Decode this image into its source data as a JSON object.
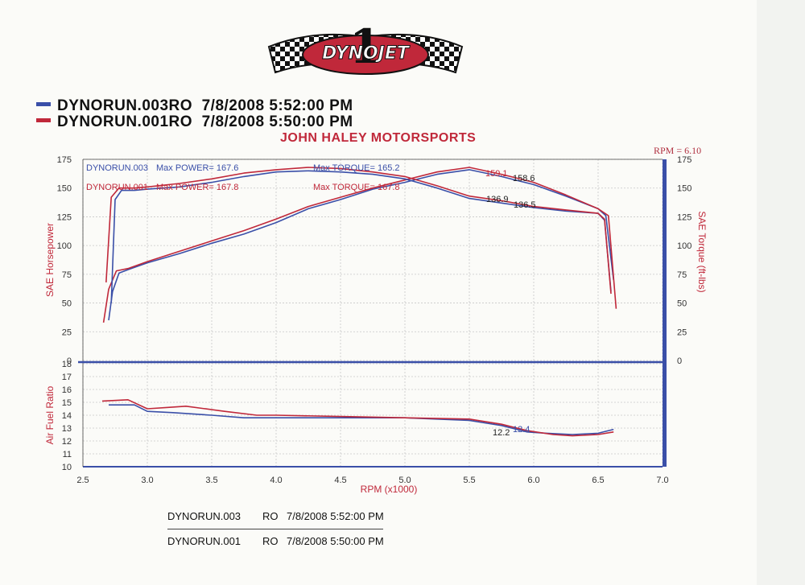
{
  "logo_text": "DYNOJET",
  "logo_number": "1",
  "runs": [
    {
      "name": "DYNORUN.003RO",
      "date": "7/8/2008",
      "time": "5:52:00 PM",
      "color": "#3a4fa8"
    },
    {
      "name": "DYNORUN.001RO",
      "date": "7/8/2008",
      "time": "5:50:00 PM",
      "color": "#c0283a"
    }
  ],
  "shop_name": "JOHN HALEY MOTORSPORTS",
  "rpm_note": "RPM = 6.10",
  "footer": [
    {
      "run": "DYNORUN.003",
      "mode": "RO",
      "datetime": "7/8/2008 5:52:00 PM"
    },
    {
      "run": "DYNORUN.001",
      "mode": "RO",
      "datetime": "7/8/2008 5:50:00 PM"
    }
  ],
  "chart_data": [
    {
      "type": "line",
      "title": "",
      "xlabel": "RPM (x1000)",
      "ylabel": "SAE Horsepower",
      "y2label": "SAE Torque (ft-lbs)",
      "xlim": [
        2.5,
        7.0
      ],
      "ylim": [
        0,
        175
      ],
      "y2lim": [
        0,
        175
      ],
      "x_ticks": [
        "2.5",
        "3.0",
        "3.5",
        "4.0",
        "4.5",
        "5.0",
        "5.5",
        "6.0",
        "6.5",
        "7.0"
      ],
      "y_ticks": [
        "0",
        "25",
        "50",
        "75",
        "100",
        "125",
        "150",
        "175"
      ],
      "grid": true,
      "annotations": [
        {
          "text": "DYNORUN.003",
          "color": "#3a4fa8"
        },
        {
          "text": "Max POWER= 167.6",
          "color": "#3a4fa8"
        },
        {
          "text": "DYNORUN.001",
          "color": "#c0283a"
        },
        {
          "text": "Max POWER= 167.8",
          "color": "#c0283a"
        },
        {
          "text": "Max TORQUE= 165.2",
          "color": "#3a4fa8"
        },
        {
          "text": "Max TORQUE= 167.8",
          "color": "#c0283a"
        },
        {
          "text": "159.1",
          "color": "#c0283a"
        },
        {
          "text": "158.6",
          "color": "#222222"
        },
        {
          "text": "136.9",
          "color": "#222222"
        },
        {
          "text": "136.5",
          "color": "#222222"
        }
      ],
      "series": [
        {
          "run": "DYNORUN.003",
          "color": "#3a4fa8",
          "x": [
            2.7,
            2.73,
            2.78,
            2.85,
            3.0,
            3.25,
            3.5,
            3.75,
            4.0,
            4.25,
            4.5,
            4.75,
            5.0,
            5.25,
            5.5,
            5.75,
            6.0,
            6.25,
            6.5,
            6.56,
            6.62
          ],
          "y": [
            35,
            60,
            76,
            79,
            85,
            93,
            102,
            110,
            120,
            132,
            140,
            149,
            155,
            162,
            166,
            160,
            153,
            143,
            132,
            126,
            70
          ]
        },
        {
          "run": "DYNORUN.001",
          "color": "#c0283a",
          "x": [
            2.66,
            2.7,
            2.76,
            2.85,
            3.0,
            3.25,
            3.5,
            3.75,
            4.0,
            4.25,
            4.5,
            4.75,
            5.0,
            5.25,
            5.5,
            5.75,
            6.0,
            6.25,
            6.5,
            6.58,
            6.64
          ],
          "y": [
            33,
            62,
            78,
            80,
            86,
            95,
            104,
            113,
            123,
            134,
            142,
            150,
            157,
            164,
            168,
            162,
            155,
            144,
            132,
            126,
            45
          ]
        },
        {
          "run": "DYNORUN.003 torque",
          "color": "#3a4fa8",
          "x": [
            2.72,
            2.75,
            2.8,
            2.9,
            3.0,
            3.25,
            3.5,
            3.75,
            4.0,
            4.25,
            4.5,
            4.75,
            5.0,
            5.25,
            5.5,
            5.75,
            6.0,
            6.25,
            6.5,
            6.55,
            6.6
          ],
          "y": [
            50,
            140,
            148,
            148,
            149,
            151,
            155,
            160,
            164,
            165,
            164,
            162,
            158,
            150,
            141,
            137,
            133,
            130,
            128,
            122,
            60
          ]
        },
        {
          "run": "DYNORUN.001 torque",
          "color": "#c0283a",
          "x": [
            2.68,
            2.72,
            2.78,
            2.9,
            3.0,
            3.25,
            3.5,
            3.75,
            4.0,
            4.25,
            4.5,
            4.75,
            5.0,
            5.25,
            5.5,
            5.75,
            6.0,
            6.25,
            6.5,
            6.55,
            6.6
          ],
          "y": [
            68,
            142,
            150,
            150,
            151,
            154,
            158,
            163,
            166,
            168,
            167,
            164,
            160,
            152,
            143,
            139,
            134,
            131,
            128,
            123,
            58
          ]
        }
      ]
    },
    {
      "type": "line",
      "title": "",
      "xlabel": "RPM (x1000)",
      "ylabel": "Air Fuel Ratio",
      "xlim": [
        2.5,
        7.0
      ],
      "ylim": [
        10,
        18
      ],
      "y_ticks": [
        "10",
        "11",
        "12",
        "13",
        "14",
        "15",
        "16",
        "17",
        "18"
      ],
      "grid": true,
      "annotations": [
        {
          "text": "12.2",
          "color": "#222222"
        },
        {
          "text": "12.4",
          "color": "#3a4fa8"
        }
      ],
      "series": [
        {
          "run": "DYNORUN.003",
          "color": "#3a4fa8",
          "x": [
            2.7,
            2.9,
            3.0,
            3.2,
            3.5,
            3.75,
            4.0,
            4.5,
            5.0,
            5.5,
            5.75,
            5.95,
            6.1,
            6.3,
            6.5,
            6.62
          ],
          "y": [
            14.8,
            14.8,
            14.3,
            14.2,
            14.0,
            13.8,
            13.8,
            13.8,
            13.8,
            13.6,
            13.2,
            12.7,
            12.6,
            12.5,
            12.6,
            12.9
          ]
        },
        {
          "run": "DYNORUN.001",
          "color": "#c0283a",
          "x": [
            2.65,
            2.85,
            3.0,
            3.15,
            3.3,
            3.6,
            3.85,
            4.0,
            4.5,
            5.0,
            5.5,
            5.75,
            5.95,
            6.15,
            6.3,
            6.5,
            6.62
          ],
          "y": [
            15.1,
            15.2,
            14.5,
            14.6,
            14.7,
            14.3,
            14.0,
            14.0,
            13.9,
            13.8,
            13.7,
            13.3,
            12.8,
            12.5,
            12.4,
            12.5,
            12.7
          ]
        }
      ]
    }
  ]
}
